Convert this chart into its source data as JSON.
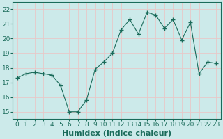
{
  "x": [
    0,
    1,
    2,
    3,
    4,
    5,
    6,
    7,
    8,
    9,
    10,
    11,
    12,
    13,
    14,
    15,
    16,
    17,
    18,
    19,
    20,
    21,
    22,
    23
  ],
  "y": [
    17.3,
    17.6,
    17.7,
    17.6,
    17.5,
    16.8,
    15.0,
    15.0,
    15.8,
    17.9,
    18.4,
    19.0,
    20.6,
    21.3,
    20.3,
    21.8,
    21.6,
    20.7,
    21.3,
    19.9,
    21.1,
    17.6,
    18.4,
    18.3
  ],
  "line_color": "#1a6b5a",
  "marker": "+",
  "marker_size": 4,
  "marker_linewidth": 1.0,
  "bg_color": "#cceaea",
  "grid_color": "#e8c8c8",
  "xlabel": "Humidex (Indice chaleur)",
  "xlim": [
    -0.5,
    23.5
  ],
  "ylim": [
    14.5,
    22.5
  ],
  "yticks": [
    15,
    16,
    17,
    18,
    19,
    20,
    21,
    22
  ],
  "xticks": [
    0,
    1,
    2,
    3,
    4,
    5,
    6,
    7,
    8,
    9,
    10,
    11,
    12,
    13,
    14,
    15,
    16,
    17,
    18,
    19,
    20,
    21,
    22,
    23
  ],
  "tick_label_color": "#1a6b5a",
  "xlabel_color": "#1a6b5a",
  "xlabel_fontsize": 8,
  "tick_fontsize": 6.5
}
